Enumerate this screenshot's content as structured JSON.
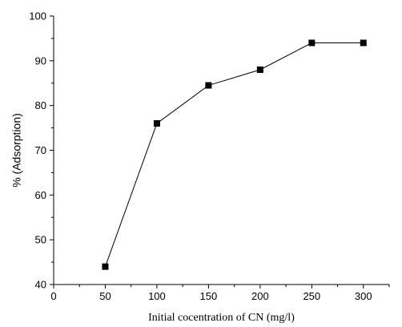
{
  "chart_data": {
    "type": "line",
    "title": "",
    "xlabel": "Initial cocentration of CN (mg/l)",
    "ylabel": "% (Adsorption)",
    "xlim": [
      0,
      325
    ],
    "ylim": [
      40,
      100
    ],
    "xticks": [
      0,
      50,
      100,
      150,
      200,
      250,
      300
    ],
    "yticks": [
      40,
      50,
      60,
      70,
      80,
      90,
      100
    ],
    "grid": false,
    "marker": "square",
    "series": [
      {
        "x": [
          50,
          100,
          150,
          200,
          250,
          300
        ],
        "y": [
          44,
          76,
          84.5,
          88,
          94,
          94
        ],
        "color": "#000000"
      }
    ]
  }
}
